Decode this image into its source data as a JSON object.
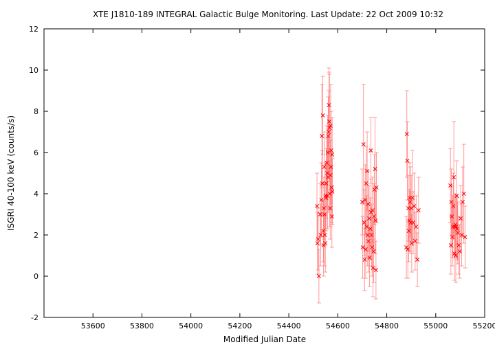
{
  "chart_data": {
    "type": "scatter",
    "title": "XTE J1810-189   INTEGRAL Galactic Bulge Monitoring.  Last Update: 22 Oct 2009 10:32",
    "xlabel": "Modified Julian Date",
    "ylabel": "ISGRI 40-100 keV (counts/s)",
    "xlim": [
      53400,
      55200
    ],
    "ylim": [
      -2,
      12
    ],
    "xticks": [
      53600,
      53800,
      54000,
      54200,
      54400,
      54600,
      54800,
      55000,
      55200
    ],
    "yticks": [
      -2,
      0,
      2,
      4,
      6,
      8,
      10,
      12
    ],
    "grid": false,
    "legend": "none",
    "marker": "x",
    "color": "#ff0000",
    "errorbar_color": "#ff8080",
    "series": [
      {
        "x": [
          54515,
          54517,
          54520,
          54523,
          54528,
          54530,
          54533,
          54535,
          54537,
          54539,
          54541,
          54543,
          54545,
          54547,
          54549,
          54551,
          54553,
          54555,
          54557,
          54559,
          54561,
          54563,
          54565,
          54567,
          54569,
          54571,
          54573,
          54575,
          54577,
          54578,
          54560,
          54566,
          54572,
          54546,
          54552,
          54558,
          54564,
          54570,
          54576,
          54542
        ],
        "y": [
          3.4,
          1.6,
          1.8,
          0.0,
          3.0,
          2.0,
          3.7,
          6.8,
          4.5,
          7.8,
          2.2,
          3.3,
          5.3,
          2.0,
          1.6,
          3.9,
          4.5,
          5.5,
          5.0,
          6.0,
          6.8,
          7.0,
          7.5,
          4.0,
          3.3,
          7.3,
          6.1,
          4.3,
          5.9,
          4.1,
          4.8,
          7.2,
          5.3,
          3.0,
          3.8,
          3.9,
          8.3,
          4.9,
          2.9,
          1.5
        ],
        "err": [
          1.6,
          1.5,
          1.5,
          1.3,
          1.5,
          1.5,
          1.8,
          2.5,
          1.6,
          1.9,
          1.5,
          1.5,
          1.7,
          1.5,
          1.4,
          1.6,
          1.7,
          1.8,
          1.7,
          1.8,
          1.9,
          2.0,
          2.4,
          1.6,
          1.5,
          2.0,
          1.9,
          1.7,
          1.8,
          1.6,
          1.7,
          2.6,
          1.8,
          1.5,
          1.6,
          1.6,
          1.8,
          1.7,
          1.5,
          1.5
        ]
      },
      {
        "x": [
          54700,
          54702,
          54705,
          54708,
          54710,
          54712,
          54714,
          54716,
          54718,
          54720,
          54722,
          54725,
          54728,
          54730,
          54733,
          54735,
          54738,
          54740,
          54742,
          54744,
          54746,
          54748,
          54750,
          54752,
          54754,
          54756,
          54758,
          54724,
          54736
        ],
        "y": [
          3.6,
          1.4,
          6.4,
          2.6,
          0.8,
          3.7,
          1.3,
          4.5,
          2.4,
          5.1,
          2.0,
          1.7,
          2.8,
          0.9,
          2.3,
          6.1,
          2.0,
          1.4,
          3.2,
          0.4,
          1.2,
          2.9,
          4.2,
          5.2,
          2.7,
          0.3,
          4.3,
          3.5,
          3.1
        ],
        "err": [
          1.6,
          1.5,
          2.9,
          1.6,
          1.5,
          1.7,
          1.4,
          1.8,
          1.5,
          1.9,
          1.5,
          1.5,
          1.6,
          1.4,
          1.5,
          1.6,
          1.5,
          1.4,
          1.6,
          1.4,
          1.5,
          1.6,
          1.7,
          2.5,
          1.6,
          1.4,
          1.7,
          1.6,
          1.6
        ]
      },
      {
        "x": [
          54880,
          54882,
          54884,
          54886,
          54888,
          54890,
          54892,
          54894,
          54896,
          54898,
          54900,
          54902,
          54905,
          54908,
          54912,
          54916,
          54920,
          54925,
          54930
        ],
        "y": [
          1.4,
          6.9,
          5.6,
          1.3,
          3.3,
          2.2,
          2.7,
          3.8,
          3.6,
          2.6,
          3.3,
          1.6,
          3.8,
          2.6,
          3.4,
          1.7,
          2.4,
          0.8,
          3.2
        ],
        "err": [
          1.5,
          2.1,
          1.9,
          1.4,
          1.6,
          1.5,
          1.5,
          1.7,
          1.7,
          1.5,
          1.6,
          1.4,
          2.3,
          1.5,
          1.6,
          1.4,
          1.5,
          1.3,
          1.6
        ]
      },
      {
        "x": [
          55060,
          55062,
          55064,
          55066,
          55068,
          55070,
          55072,
          55074,
          55076,
          55078,
          55080,
          55082,
          55084,
          55086,
          55088,
          55090,
          55094,
          55098,
          55102,
          55106,
          55110,
          55115,
          55120
        ],
        "y": [
          4.4,
          1.5,
          3.6,
          2.9,
          1.9,
          2.4,
          3.4,
          4.8,
          1.1,
          2.4,
          2.5,
          1.0,
          2.4,
          3.9,
          2.3,
          2.1,
          1.5,
          1.2,
          2.8,
          2.0,
          3.6,
          4.0,
          1.9
        ],
        "err": [
          1.8,
          1.4,
          1.6,
          1.5,
          1.4,
          1.5,
          1.6,
          2.7,
          1.3,
          1.5,
          1.5,
          1.3,
          1.5,
          1.7,
          1.5,
          1.5,
          1.4,
          1.3,
          1.6,
          1.5,
          1.7,
          2.4,
          1.5
        ]
      }
    ]
  }
}
